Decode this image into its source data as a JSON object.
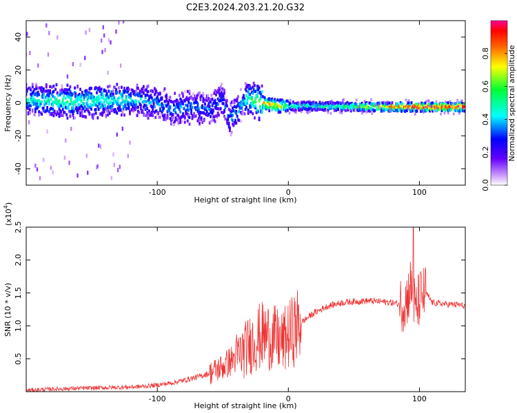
{
  "figure": {
    "title": "C2E3.2024.203.21.20.G32"
  },
  "chart_data": [
    {
      "type": "heatmap",
      "title": "C2E3.2024.203.21.20.G32",
      "xlabel": "Height of straight line (km)",
      "ylabel": "Frequency (Hz)",
      "xlim": [
        -200,
        135
      ],
      "ylim": [
        -50,
        50
      ],
      "xticks": [
        -100,
        0,
        100
      ],
      "xtick_labels": [
        "-100",
        "0",
        "100"
      ],
      "yticks": [
        -40,
        -20,
        0,
        20,
        40
      ],
      "ytick_labels": [
        "-40",
        "-20",
        "0",
        "20",
        "40"
      ],
      "colorbar": {
        "label": "Normalized spectral amplitude",
        "range": [
          0,
          1
        ],
        "ticks": [
          0.0,
          0.2,
          0.4,
          0.6,
          0.8
        ],
        "tick_labels": [
          "0.0",
          "0.2",
          "0.4",
          "0.6",
          "0.8"
        ],
        "colormap": "rainbow: white-purple-blue-cyan-green-yellow-orange-red-magenta"
      },
      "ridge": {
        "x": [
          -200,
          -180,
          -160,
          -140,
          -120,
          -100,
          -90,
          -80,
          -70,
          -60,
          -55,
          -50,
          -45,
          -40,
          -35,
          -30,
          -25,
          -20,
          -15,
          -10,
          -5,
          0,
          20,
          40,
          60,
          80,
          90,
          95,
          100,
          110,
          120,
          135
        ],
        "freq_center": [
          2,
          1,
          1,
          1.5,
          2,
          0,
          -4,
          -3,
          -2,
          -4,
          -1,
          3,
          -10,
          -6,
          0,
          3,
          1,
          0,
          -1,
          -1.5,
          -2,
          -2,
          -2,
          -2.2,
          -2.4,
          -2.5,
          -2.5,
          -2.5,
          -2.5,
          -2.5,
          -2.5,
          -2.5
        ],
        "amplitude": [
          0.45,
          0.5,
          0.5,
          0.5,
          0.45,
          0.35,
          0.35,
          0.35,
          0.35,
          0.3,
          0.3,
          0.3,
          0.35,
          0.35,
          0.4,
          0.5,
          0.6,
          0.75,
          0.85,
          0.8,
          0.75,
          0.5,
          0.5,
          0.55,
          0.7,
          0.85,
          0.9,
          1.0,
          0.95,
          0.95,
          0.95,
          0.95
        ]
      },
      "grid": false
    },
    {
      "type": "line",
      "xlabel": "Height of straight line (km)",
      "ylabel": "SNR (10 * v/v)",
      "y_multiplier_label": "(x10",
      "y_multiplier_exponent": "4",
      "y_multiplier_close": ")",
      "xlim": [
        -200,
        135
      ],
      "ylim": [
        0,
        2.5
      ],
      "xticks": [
        -100,
        0,
        100
      ],
      "xtick_labels": [
        "-100",
        "0",
        "100"
      ],
      "yticks": [
        0.5,
        1.0,
        1.5,
        2.0,
        2.5
      ],
      "ytick_labels": [
        "0.5",
        "1.0",
        "1.5",
        "2.0",
        "2.5"
      ],
      "series": [
        {
          "color": "#ee3333",
          "x": [
            -200,
            -180,
            -160,
            -140,
            -120,
            -110,
            -100,
            -90,
            -80,
            -70,
            -60,
            -50,
            -45,
            -40,
            -35,
            -30,
            -25,
            -20,
            -15,
            -10,
            -5,
            0,
            5,
            10,
            15,
            20,
            25,
            30,
            40,
            50,
            60,
            70,
            75,
            80,
            85,
            90,
            93,
            95,
            97,
            100,
            105,
            110,
            120,
            130,
            135
          ],
          "values": [
            0.02,
            0.04,
            0.05,
            0.06,
            0.07,
            0.08,
            0.1,
            0.13,
            0.17,
            0.22,
            0.28,
            0.38,
            0.45,
            0.52,
            0.6,
            0.7,
            0.8,
            0.85,
            0.85,
            0.8,
            0.75,
            0.85,
            0.95,
            1.05,
            1.13,
            1.2,
            1.25,
            1.3,
            1.35,
            1.37,
            1.38,
            1.37,
            1.36,
            1.35,
            1.33,
            1.38,
            1.6,
            1.5,
            1.2,
            1.42,
            1.5,
            1.35,
            1.33,
            1.32,
            1.3
          ]
        }
      ],
      "grid": false
    }
  ]
}
